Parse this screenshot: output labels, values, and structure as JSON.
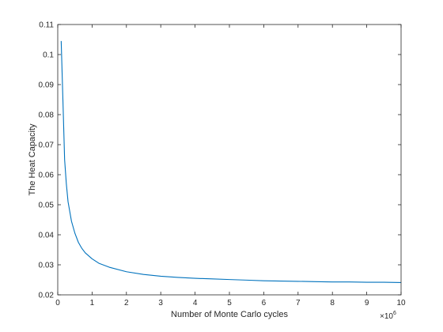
{
  "chart_data": {
    "type": "line",
    "title": "",
    "xlabel": "Number of Monte Carlo cycles",
    "ylabel": "The Heat Capacity",
    "x_exponent_base": "×10",
    "x_exponent_power": "6",
    "xlim": [
      0,
      10
    ],
    "ylim": [
      0.02,
      0.11
    ],
    "xticks": [
      0,
      1,
      2,
      3,
      4,
      5,
      6,
      7,
      8,
      9,
      10
    ],
    "xtick_labels": [
      "0",
      "1",
      "2",
      "3",
      "4",
      "5",
      "6",
      "7",
      "8",
      "9",
      "10"
    ],
    "yticks": [
      0.02,
      0.03,
      0.04,
      0.05,
      0.06,
      0.07,
      0.08,
      0.09,
      0.1,
      0.11
    ],
    "ytick_labels": [
      "0.02",
      "0.03",
      "0.04",
      "0.05",
      "0.06",
      "0.07",
      "0.08",
      "0.09",
      "0.1",
      "0.11"
    ],
    "grid": false,
    "box": true,
    "colors": {
      "axis": "#262626",
      "line": "#0072BD"
    },
    "series": [
      {
        "x": [
          0.1,
          0.15,
          0.2,
          0.25,
          0.3,
          0.4,
          0.5,
          0.6,
          0.7,
          0.8,
          1.0,
          1.2,
          1.5,
          2.0,
          2.5,
          3.0,
          3.5,
          4.0,
          4.5,
          5.0,
          5.5,
          6.0,
          6.5,
          7.0,
          7.5,
          8.0,
          8.5,
          9.0,
          9.5,
          10.0
        ],
        "y": [
          0.1045,
          0.085,
          0.065,
          0.057,
          0.051,
          0.0445,
          0.0405,
          0.0375,
          0.0355,
          0.034,
          0.032,
          0.0305,
          0.0292,
          0.0277,
          0.0268,
          0.0262,
          0.0258,
          0.0255,
          0.0253,
          0.0251,
          0.0249,
          0.0247,
          0.0246,
          0.0245,
          0.0244,
          0.0243,
          0.0243,
          0.0242,
          0.0242,
          0.0241
        ]
      }
    ]
  }
}
